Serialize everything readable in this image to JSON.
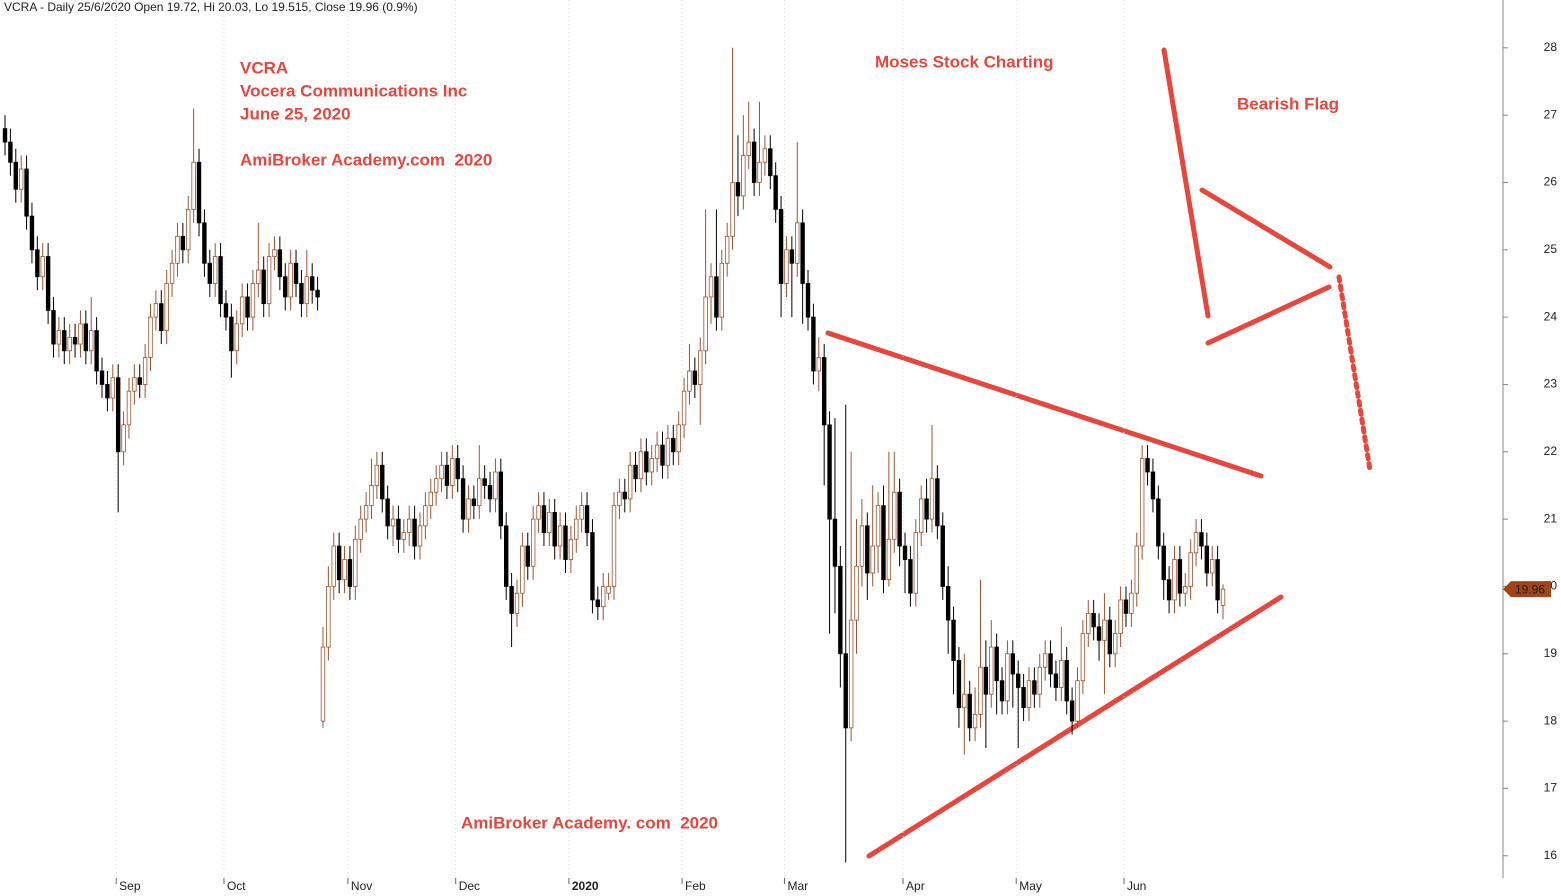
{
  "chart_data": {
    "type": "candlestick",
    "title": "VCRA - Daily 25/6/2020 Open 19.72, Hi 20.03, Lo 19.515, Close 19.96 (0.9%)",
    "annotations": [
      "VCRA",
      "Vocera Communications Inc",
      "June 25, 2020",
      "AmiBroker Academy.com  2020",
      "Moses Stock Charting",
      "Bearish Flag",
      "AmiBroker Academy. com  2020"
    ],
    "up_color": "#a0522d",
    "down_color": "#000000",
    "label_color": "#a0441c",
    "categories": [
      null,
      null,
      null,
      null,
      null,
      null,
      null,
      null,
      null,
      null,
      null,
      null,
      null,
      null,
      null,
      null,
      null,
      null,
      null,
      null,
      null,
      "Sep",
      null,
      null,
      null,
      null,
      null,
      null,
      null,
      null,
      null,
      null,
      null,
      null,
      null,
      null,
      null,
      null,
      null,
      null,
      null,
      "Oct",
      null,
      null,
      null,
      null,
      null,
      null,
      null,
      null,
      null,
      null,
      null,
      null,
      null,
      null,
      null,
      null,
      null,
      null,
      null,
      null,
      null,
      null,
      "Nov",
      null,
      null,
      null,
      null,
      null,
      null,
      null,
      null,
      null,
      null,
      null,
      null,
      null,
      null,
      null,
      null,
      null,
      null,
      null,
      "Dec",
      null,
      null,
      null,
      null,
      null,
      null,
      null,
      null,
      null,
      null,
      null,
      null,
      null,
      null,
      null,
      null,
      null,
      null,
      null,
      null,
      "2020",
      null,
      null,
      null,
      null,
      null,
      null,
      null,
      null,
      null,
      null,
      null,
      null,
      null,
      null,
      null,
      null,
      null,
      null,
      null,
      null,
      "Feb",
      null,
      null,
      null,
      null,
      null,
      null,
      null,
      null,
      null,
      null,
      null,
      null,
      null,
      null,
      null,
      null,
      null,
      null,
      "Mar",
      null,
      null,
      null,
      null,
      null,
      null,
      null,
      null,
      null,
      null,
      null,
      null,
      null,
      null,
      null,
      null,
      null,
      null,
      null,
      null,
      null,
      "Apr",
      null,
      null,
      null,
      null,
      null,
      null,
      null,
      null,
      null,
      null,
      null,
      null,
      null,
      null,
      null,
      null,
      null,
      null,
      null,
      null,
      "May",
      null,
      null,
      null,
      null,
      null,
      null,
      null,
      null,
      null,
      null,
      null,
      null,
      null,
      null,
      null,
      null,
      null,
      null,
      null,
      "Jun",
      null,
      null,
      null,
      null,
      null,
      null,
      null,
      null,
      null,
      null,
      null,
      null,
      null,
      null,
      null,
      null,
      null,
      null
    ],
    "open": [
      26.8,
      26.6,
      26.3,
      25.9,
      26.2,
      25.5,
      25.0,
      24.6,
      24.9,
      24.1,
      23.6,
      23.8,
      23.5,
      23.7,
      23.6,
      23.9,
      23.5,
      23.8,
      23.2,
      23.0,
      22.8,
      23.1,
      22.0,
      22.4,
      22.9,
      23.1,
      23.0,
      23.4,
      24.0,
      24.2,
      23.8,
      24.5,
      24.8,
      25.2,
      25.0,
      25.6,
      26.3,
      25.4,
      24.8,
      24.5,
      24.9,
      24.2,
      24.0,
      23.5,
      23.9,
      24.3,
      24.0,
      24.5,
      24.7,
      24.2,
      24.9,
      25.0,
      24.6,
      24.3,
      24.8,
      24.5,
      24.2,
      24.6,
      24.4,
      18.0,
      19.1,
      20.0,
      20.6,
      20.1,
      20.4,
      20.0,
      20.7,
      21.0,
      21.2,
      21.5,
      21.8,
      21.3,
      20.9,
      21.0,
      20.7,
      20.8,
      21.0,
      20.6,
      20.9,
      21.2,
      21.4,
      21.6,
      21.8,
      21.5,
      21.9,
      21.6,
      21.0,
      21.3,
      21.2,
      21.6,
      21.5,
      21.3,
      21.7,
      20.9,
      20.0,
      19.6,
      19.9,
      20.6,
      20.3,
      21.0,
      21.2,
      20.8,
      21.1,
      20.6,
      20.9,
      20.4,
      20.7,
      21.0,
      21.2,
      20.8,
      19.8,
      19.7,
      19.9,
      20.0,
      21.2,
      21.4,
      21.3,
      21.8,
      21.6,
      22.0,
      21.7,
      21.9,
      22.1,
      21.8,
      22.2,
      22.0,
      22.4,
      22.9,
      23.2,
      23.0,
      23.5,
      24.3,
      24.6,
      24.0,
      24.8,
      25.2,
      26.0,
      25.8,
      26.4,
      26.6,
      26.0,
      26.3,
      26.5,
      26.1,
      25.6,
      24.5,
      25.0,
      24.8,
      25.4,
      24.5,
      24.0,
      23.2,
      23.4,
      22.4,
      21.0,
      20.3,
      19.0,
      17.9,
      19.5,
      20.3,
      20.9,
      20.2,
      20.6,
      21.2,
      20.1,
      20.7,
      21.4,
      20.6,
      20.4,
      19.9,
      20.8,
      21.3,
      21.0,
      21.6,
      20.9,
      20.0,
      19.5,
      18.9,
      18.2,
      18.4,
      17.9,
      18.1,
      18.8,
      18.4,
      19.1,
      18.6,
      18.3,
      19.0,
      18.7,
      18.5,
      18.2,
      18.6,
      18.4,
      18.8,
      19.0,
      18.7,
      18.5,
      18.9,
      18.3,
      18.0,
      18.6,
      19.3,
      19.6,
      19.4,
      19.2,
      19.5,
      19.0,
      19.3,
      19.8,
      19.6,
      19.9,
      20.6,
      21.9,
      21.7,
      21.3,
      20.6,
      20.1,
      19.8,
      20.4,
      19.9,
      20.0,
      20.5,
      20.8,
      20.6,
      20.2,
      20.4,
      19.72
    ],
    "high": [
      27.0,
      26.8,
      26.5,
      26.4,
      26.4,
      25.7,
      25.2,
      25.1,
      25.1,
      24.3,
      24.0,
      24.0,
      23.9,
      23.9,
      24.1,
      24.1,
      24.3,
      24.0,
      23.4,
      23.2,
      23.3,
      23.3,
      22.6,
      23.1,
      23.3,
      23.3,
      23.6,
      24.2,
      24.4,
      24.4,
      24.7,
      25.0,
      25.4,
      25.4,
      25.8,
      27.1,
      26.5,
      25.6,
      25.0,
      25.1,
      25.1,
      24.4,
      24.2,
      24.1,
      24.5,
      24.5,
      24.7,
      25.4,
      24.9,
      25.1,
      25.2,
      25.2,
      24.8,
      25.0,
      25.0,
      24.7,
      25.0,
      24.8,
      24.6,
      19.4,
      20.3,
      20.8,
      20.8,
      20.6,
      20.6,
      20.9,
      21.2,
      21.4,
      21.9,
      22.0,
      22.0,
      21.5,
      21.2,
      21.2,
      21.0,
      21.2,
      21.2,
      21.1,
      21.4,
      21.6,
      21.8,
      22.0,
      22.0,
      22.1,
      22.1,
      21.8,
      21.5,
      21.5,
      22.1,
      21.8,
      21.7,
      21.9,
      21.9,
      21.1,
      20.2,
      20.1,
      20.8,
      20.8,
      21.2,
      21.4,
      21.4,
      21.3,
      21.3,
      21.1,
      21.1,
      20.9,
      21.2,
      21.4,
      21.4,
      21.0,
      20.0,
      20.2,
      20.2,
      21.4,
      21.6,
      21.6,
      22.0,
      22.0,
      22.2,
      22.2,
      22.1,
      22.3,
      22.3,
      22.4,
      22.4,
      22.6,
      23.1,
      23.6,
      23.4,
      23.7,
      25.6,
      24.8,
      25.6,
      25.0,
      25.4,
      28.0,
      26.7,
      27.0,
      27.2,
      26.8,
      27.2,
      26.7,
      26.7,
      26.3,
      25.8,
      25.2,
      25.2,
      26.6,
      25.6,
      24.7,
      24.2,
      23.7,
      23.6,
      22.6,
      22.5,
      20.6,
      22.7,
      22.0,
      21.0,
      21.3,
      21.1,
      21.5,
      21.4,
      21.5,
      22.0,
      22.0,
      21.6,
      20.8,
      20.6,
      21.0,
      21.5,
      21.6,
      22.4,
      21.8,
      21.1,
      20.3,
      19.7,
      19.1,
      19.0,
      18.6,
      18.5,
      20.1,
      19.2,
      19.5,
      19.3,
      18.8,
      19.2,
      19.2,
      18.9,
      18.7,
      18.8,
      18.8,
      19.0,
      19.2,
      19.2,
      18.9,
      19.4,
      19.1,
      18.5,
      18.8,
      19.5,
      19.8,
      19.8,
      19.6,
      19.9,
      19.7,
      19.5,
      20.0,
      20.0,
      20.1,
      20.8,
      22.1,
      22.1,
      21.9,
      21.5,
      20.8,
      20.3,
      20.6,
      20.6,
      20.2,
      20.7,
      21.0,
      21.0,
      20.8,
      20.6,
      20.6,
      20.03
    ],
    "low": [
      26.4,
      26.1,
      25.7,
      25.7,
      25.3,
      24.8,
      24.4,
      24.4,
      23.9,
      23.4,
      23.4,
      23.3,
      23.3,
      23.4,
      23.4,
      23.3,
      23.3,
      23.0,
      22.8,
      22.6,
      22.6,
      21.1,
      21.8,
      22.2,
      22.7,
      22.8,
      22.8,
      23.2,
      23.8,
      23.6,
      23.6,
      24.3,
      24.6,
      24.8,
      24.8,
      25.4,
      25.2,
      24.6,
      24.3,
      24.3,
      24.0,
      23.8,
      23.1,
      23.3,
      23.7,
      23.8,
      23.8,
      24.3,
      24.0,
      24.0,
      24.7,
      24.4,
      24.1,
      24.1,
      24.3,
      24.0,
      24.0,
      24.2,
      24.1,
      17.9,
      18.9,
      19.8,
      19.9,
      19.9,
      19.8,
      19.8,
      20.5,
      20.8,
      21.0,
      21.3,
      21.1,
      20.7,
      20.6,
      20.5,
      20.5,
      20.6,
      20.4,
      20.4,
      20.7,
      21.0,
      21.2,
      21.4,
      21.3,
      21.3,
      21.4,
      20.8,
      20.8,
      21.0,
      21.0,
      21.3,
      21.1,
      21.1,
      20.7,
      19.8,
      19.1,
      19.4,
      19.7,
      20.1,
      20.1,
      20.8,
      20.6,
      20.6,
      20.4,
      20.4,
      20.2,
      20.2,
      20.5,
      20.8,
      20.6,
      19.6,
      19.5,
      19.5,
      19.8,
      19.8,
      21.0,
      21.1,
      21.1,
      21.4,
      21.4,
      21.5,
      21.5,
      21.7,
      21.6,
      21.6,
      21.8,
      21.8,
      22.2,
      22.7,
      22.8,
      22.4,
      23.3,
      23.9,
      23.8,
      23.8,
      24.6,
      25.0,
      25.5,
      25.6,
      26.2,
      25.8,
      25.8,
      26.1,
      25.9,
      25.4,
      24.0,
      24.3,
      24.0,
      24.6,
      23.9,
      23.8,
      23.0,
      22.9,
      21.5,
      19.3,
      19.6,
      18.5,
      15.9,
      17.7,
      19.0,
      20.0,
      19.8,
      20.0,
      20.2,
      19.9,
      20.0,
      20.5,
      20.3,
      19.9,
      19.7,
      19.7,
      20.6,
      20.8,
      20.8,
      20.7,
      19.8,
      19.0,
      18.4,
      17.9,
      17.5,
      17.7,
      17.7,
      17.9,
      17.6,
      18.2,
      18.1,
      18.1,
      18.1,
      18.2,
      17.6,
      18.0,
      18.0,
      18.2,
      18.2,
      18.6,
      18.5,
      18.3,
      18.3,
      18.1,
      17.8,
      17.9,
      18.4,
      19.1,
      19.2,
      18.9,
      18.4,
      18.8,
      18.8,
      19.1,
      19.4,
      19.4,
      19.7,
      20.4,
      21.5,
      21.1,
      20.4,
      19.8,
      19.6,
      19.6,
      19.7,
      19.7,
      19.8,
      20.3,
      20.4,
      20.0,
      20.0,
      19.6,
      19.515
    ],
    "close": [
      26.6,
      26.3,
      25.9,
      26.2,
      25.5,
      25.0,
      24.6,
      24.9,
      24.1,
      23.6,
      23.8,
      23.5,
      23.7,
      23.6,
      23.9,
      23.5,
      23.8,
      23.2,
      23.0,
      22.8,
      23.1,
      22.0,
      22.4,
      22.9,
      23.1,
      23.0,
      23.4,
      24.0,
      24.2,
      23.8,
      24.5,
      24.8,
      25.2,
      25.0,
      25.6,
      26.3,
      25.4,
      24.8,
      24.5,
      24.9,
      24.2,
      24.0,
      23.5,
      23.9,
      24.3,
      24.0,
      24.5,
      24.7,
      24.2,
      24.9,
      25.0,
      24.6,
      24.3,
      24.8,
      24.5,
      24.2,
      24.6,
      24.4,
      24.3,
      19.1,
      20.0,
      20.6,
      20.1,
      20.4,
      20.0,
      20.7,
      21.0,
      21.2,
      21.5,
      21.8,
      21.3,
      20.9,
      21.0,
      20.7,
      20.8,
      21.0,
      20.6,
      20.9,
      21.2,
      21.4,
      21.6,
      21.8,
      21.5,
      21.9,
      21.6,
      21.0,
      21.3,
      21.2,
      21.6,
      21.5,
      21.3,
      21.7,
      20.9,
      20.0,
      19.6,
      19.9,
      20.6,
      20.3,
      21.0,
      21.2,
      20.8,
      21.1,
      20.6,
      20.9,
      20.4,
      20.7,
      21.0,
      21.2,
      20.8,
      19.8,
      19.7,
      20.0,
      20.0,
      21.2,
      21.4,
      21.3,
      21.8,
      21.6,
      22.0,
      21.7,
      21.9,
      22.1,
      21.8,
      22.2,
      22.0,
      22.4,
      22.9,
      23.2,
      23.0,
      23.5,
      24.3,
      24.6,
      24.0,
      24.8,
      25.2,
      26.0,
      25.8,
      26.4,
      26.6,
      26.0,
      26.3,
      26.5,
      26.1,
      25.6,
      24.5,
      25.0,
      24.8,
      25.4,
      24.5,
      24.0,
      23.2,
      23.4,
      22.4,
      21.0,
      20.3,
      19.0,
      17.9,
      19.5,
      20.3,
      20.9,
      20.2,
      20.6,
      21.2,
      20.1,
      20.7,
      21.4,
      20.6,
      20.4,
      19.9,
      20.8,
      21.3,
      21.0,
      21.6,
      20.9,
      20.0,
      19.5,
      18.9,
      18.2,
      18.4,
      17.9,
      18.1,
      18.8,
      18.4,
      19.1,
      18.6,
      18.3,
      19.0,
      18.7,
      18.5,
      18.2,
      18.6,
      18.4,
      18.8,
      19.0,
      18.7,
      18.5,
      18.9,
      18.3,
      18.0,
      18.6,
      19.3,
      19.6,
      19.4,
      19.2,
      19.5,
      19.0,
      19.3,
      19.8,
      19.6,
      19.9,
      20.6,
      21.9,
      21.7,
      21.3,
      20.6,
      20.1,
      19.8,
      20.4,
      19.9,
      20.0,
      20.5,
      20.8,
      20.6,
      20.2,
      20.4,
      19.8,
      19.96
    ],
    "ylim": [
      15.67,
      28.71
    ],
    "yticks": [
      16,
      17,
      18,
      19,
      20,
      21,
      22,
      23,
      24,
      25,
      26,
      27,
      28
    ],
    "grid": false
  }
}
